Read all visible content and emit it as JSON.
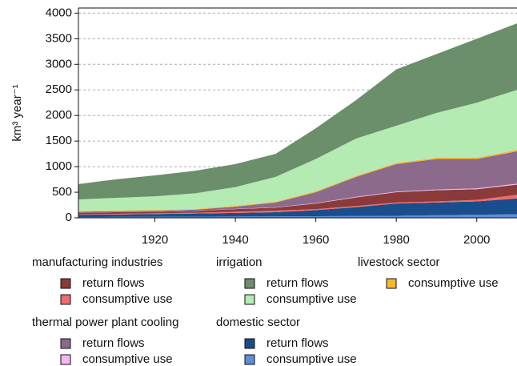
{
  "chart_data": {
    "type": "stacked_area",
    "y_label": "km³ year⁻¹",
    "x": [
      1901,
      1910,
      1920,
      1930,
      1940,
      1950,
      1960,
      1970,
      1980,
      1990,
      2000,
      2010
    ],
    "xlim": [
      1901,
      2010
    ],
    "xticks": [
      1920,
      1940,
      1960,
      1980,
      2000
    ],
    "ylim": [
      0,
      4100
    ],
    "yticks": [
      0,
      500,
      1000,
      1500,
      2000,
      2500,
      3000,
      3500,
      4000
    ],
    "grid": true,
    "legend_groups": [
      "manufacturing industries",
      "irrigation",
      "livestock sector",
      "thermal power plant cooling",
      "domestic sector"
    ],
    "series": [
      {
        "group": "domestic sector",
        "name": "consumptive use",
        "color": "#5b8fd9",
        "values": [
          15,
          17,
          20,
          22,
          25,
          28,
          32,
          36,
          40,
          50,
          60,
          70
        ]
      },
      {
        "group": "domestic sector",
        "name": "return flows",
        "color": "#1a4d8c",
        "values": [
          45,
          48,
          55,
          63,
          70,
          82,
          118,
          174,
          240,
          250,
          260,
          310
        ]
      },
      {
        "group": "manufacturing industries",
        "name": "consumptive use",
        "color": "#f26b6b",
        "values": [
          10,
          13,
          13,
          15,
          25,
          30,
          20,
          20,
          20,
          20,
          30,
          70
        ]
      },
      {
        "group": "manufacturing industries",
        "name": "return flows",
        "color": "#8b3a3a",
        "values": [
          30,
          32,
          32,
          35,
          50,
          60,
          110,
          170,
          200,
          220,
          210,
          200
        ]
      },
      {
        "group": "thermal power plant cooling",
        "name": "consumptive use",
        "color": "#f5b8f0",
        "values": [
          2,
          2,
          3,
          3,
          5,
          5,
          8,
          10,
          12,
          14,
          15,
          18
        ]
      },
      {
        "group": "thermal power plant cooling",
        "name": "return flows",
        "color": "#8c6a8c",
        "values": [
          18,
          18,
          17,
          22,
          45,
          95,
          212,
          390,
          538,
          596,
          575,
          632
        ]
      },
      {
        "group": "livestock sector",
        "name": "consumptive use",
        "color": "#f5b82e",
        "values": [
          10,
          11,
          12,
          13,
          14,
          16,
          18,
          20,
          22,
          24,
          26,
          28
        ]
      },
      {
        "group": "irrigation",
        "name": "consumptive use",
        "color": "#b3ebb3",
        "values": [
          230,
          249,
          268,
          307,
          366,
          484,
          632,
          730,
          728,
          876,
          1074,
          1172
        ]
      },
      {
        "group": "irrigation",
        "name": "return flows",
        "color": "#6b8f6b",
        "values": [
          300,
          360,
          410,
          440,
          450,
          450,
          600,
          750,
          1100,
          1150,
          1250,
          1300
        ]
      }
    ]
  }
}
